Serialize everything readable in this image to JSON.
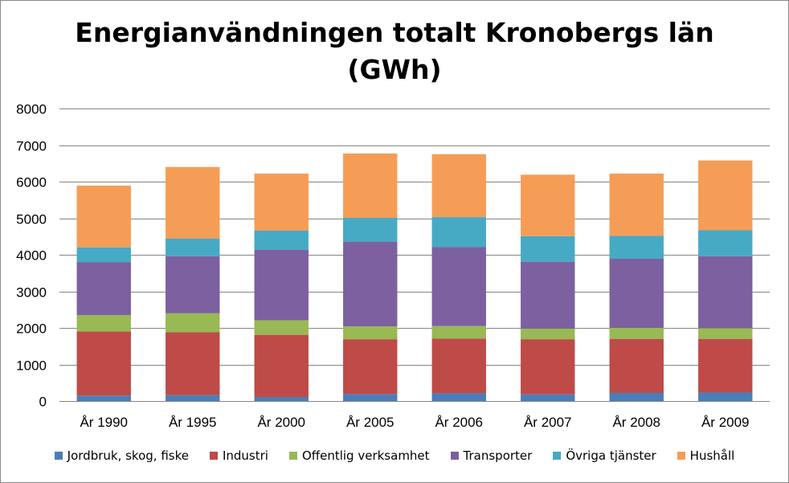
{
  "chart_data": {
    "type": "bar",
    "stacked": true,
    "title": [
      "Energianvändningen totalt Kronobergs län",
      "(GWh)"
    ],
    "categories": [
      "År 1990",
      "År 1995",
      "År 2000",
      "År 2005",
      "År 2006",
      "År 2007",
      "År 2008",
      "År 2009"
    ],
    "ylim": [
      0,
      8000
    ],
    "yticks": [
      0,
      1000,
      2000,
      3000,
      4000,
      5000,
      6000,
      7000,
      8000
    ],
    "grid": true,
    "legend_position": "bottom",
    "series": [
      {
        "name": "Jordbruk, skog, fiske",
        "color": "#4a7ebb",
        "values": [
          150,
          160,
          110,
          190,
          210,
          180,
          220,
          230
        ]
      },
      {
        "name": "Industri",
        "color": "#be4b48",
        "values": [
          1750,
          1720,
          1700,
          1500,
          1500,
          1510,
          1480,
          1470
        ]
      },
      {
        "name": "Offentlig verksamhet",
        "color": "#98b954",
        "values": [
          450,
          520,
          400,
          350,
          340,
          290,
          300,
          290
        ]
      },
      {
        "name": "Transporter",
        "color": "#7d60a0",
        "values": [
          1450,
          1560,
          1930,
          2320,
          2160,
          1830,
          1890,
          1970
        ]
      },
      {
        "name": "Övriga tjänster",
        "color": "#46aac5",
        "values": [
          400,
          480,
          520,
          650,
          820,
          700,
          630,
          710
        ]
      },
      {
        "name": "Hushåll",
        "color": "#f59d56",
        "values": [
          1690,
          1960,
          1560,
          1760,
          1720,
          1680,
          1700,
          1910
        ]
      }
    ]
  }
}
